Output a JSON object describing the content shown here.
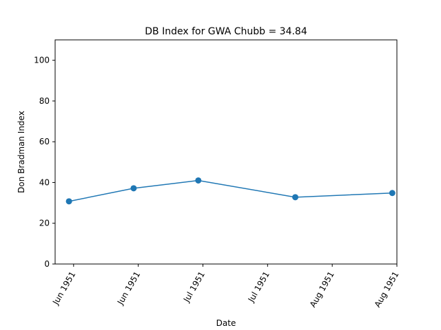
{
  "chart_data": {
    "type": "line",
    "title": "DB Index for GWA Chubb = 34.84",
    "xlabel": "Date",
    "ylabel": "Don Bradman Index",
    "ylim": [
      0,
      110
    ],
    "xlim": [
      "1951-06-04",
      "1951-08-17"
    ],
    "xticks": [
      {
        "date": "1951-06-08",
        "label": "Jun 1951"
      },
      {
        "date": "1951-06-22",
        "label": "Jun 1951"
      },
      {
        "date": "1951-07-06",
        "label": "Jul 1951"
      },
      {
        "date": "1951-07-20",
        "label": "Jul 1951"
      },
      {
        "date": "1951-08-03",
        "label": "Aug 1951"
      },
      {
        "date": "1951-08-17",
        "label": "Aug 1951"
      }
    ],
    "yticks": [
      0,
      20,
      40,
      60,
      80,
      100
    ],
    "grid": false,
    "series": [
      {
        "color": "#1f77b4",
        "x": [
          "1951-06-07",
          "1951-06-21",
          "1951-07-05",
          "1951-07-26",
          "1951-08-16"
        ],
        "y": [
          30.75,
          37.17,
          41.0,
          32.79,
          34.84
        ]
      }
    ]
  }
}
